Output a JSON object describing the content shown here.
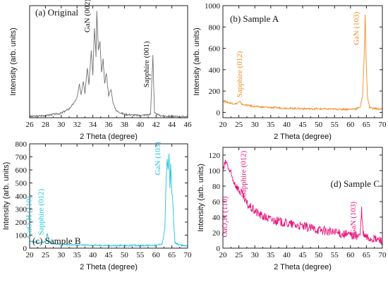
{
  "chart_data": [
    {
      "type": "line",
      "panel_label": "(a) Original",
      "xlabel": "2 Theta (degree)",
      "ylabel": "Intensity (arb. units)",
      "xlim": [
        26,
        46
      ],
      "xticks": [
        26,
        28,
        30,
        32,
        34,
        36,
        38,
        40,
        42,
        44,
        46
      ],
      "ylim": [
        0,
        1
      ],
      "yticks": [],
      "color": "#707070",
      "y_values_shown": false,
      "annotations": [
        {
          "text": "GaN (002)",
          "x": 33.6,
          "y": 0.76,
          "rotate": true
        },
        {
          "text": "Sapphire (001)",
          "x": 41.1,
          "y": 0.27,
          "rotate": true
        }
      ],
      "series": [
        {
          "points": [
            [
              26,
              0.01
            ],
            [
              28,
              0.02
            ],
            [
              30,
              0.04
            ],
            [
              31,
              0.08
            ],
            [
              31.6,
              0.13
            ],
            [
              32,
              0.18
            ],
            [
              32.3,
              0.3
            ],
            [
              32.5,
              0.2
            ],
            [
              32.8,
              0.33
            ],
            [
              33.0,
              0.22
            ],
            [
              33.3,
              0.45
            ],
            [
              33.5,
              0.3
            ],
            [
              33.8,
              0.6
            ],
            [
              34.0,
              0.38
            ],
            [
              34.2,
              0.8
            ],
            [
              34.4,
              0.55
            ],
            [
              34.5,
              0.95
            ],
            [
              34.7,
              0.6
            ],
            [
              34.9,
              0.68
            ],
            [
              35.1,
              0.4
            ],
            [
              35.3,
              0.52
            ],
            [
              35.5,
              0.3
            ],
            [
              35.7,
              0.4
            ],
            [
              36.0,
              0.2
            ],
            [
              36.3,
              0.25
            ],
            [
              36.6,
              0.12
            ],
            [
              37,
              0.06
            ],
            [
              38,
              0.03
            ],
            [
              40,
              0.02
            ],
            [
              41.3,
              0.03
            ],
            [
              41.6,
              0.56
            ],
            [
              41.8,
              0.04
            ],
            [
              42.5,
              0.02
            ],
            [
              44,
              0.01
            ],
            [
              46,
              0.01
            ]
          ]
        }
      ]
    },
    {
      "type": "line",
      "panel_label": "(b) Sample A",
      "xlabel": "2 Theta (degree)",
      "ylabel": "Intensity (arb. units)",
      "xlim": [
        20,
        70
      ],
      "xticks": [
        20,
        25,
        30,
        35,
        40,
        45,
        50,
        55,
        60,
        65,
        70
      ],
      "ylim": [
        -50,
        1000
      ],
      "yticks": [
        0,
        200,
        400,
        600,
        800,
        1000
      ],
      "color": "#f28a1e",
      "annotations": [
        {
          "text": "Sapphire (012)",
          "x": 26.0,
          "y": 140,
          "rotate": true
        },
        {
          "text": "GaN (103)",
          "x": 62.6,
          "y": 630,
          "rotate": true
        }
      ],
      "series": [
        {
          "points": [
            [
              20,
              110
            ],
            [
              21,
              100
            ],
            [
              22,
              90
            ],
            [
              23,
              85
            ],
            [
              24,
              80
            ],
            [
              25.4,
              100
            ],
            [
              26,
              75
            ],
            [
              28,
              65
            ],
            [
              30,
              55
            ],
            [
              35,
              45
            ],
            [
              40,
              40
            ],
            [
              45,
              35
            ],
            [
              50,
              33
            ],
            [
              55,
              30
            ],
            [
              60,
              30
            ],
            [
              62,
              35
            ],
            [
              63,
              50
            ],
            [
              63.8,
              150
            ],
            [
              64.3,
              520
            ],
            [
              64.6,
              920
            ],
            [
              64.9,
              500
            ],
            [
              65.3,
              150
            ],
            [
              66,
              45
            ],
            [
              68,
              35
            ],
            [
              70,
              30
            ]
          ]
        }
      ]
    },
    {
      "type": "line",
      "panel_label": "(c) Sample B",
      "xlabel": "2 Theta (degree)",
      "ylabel": "Intensity (arb. units)",
      "xlim": [
        20,
        70
      ],
      "xticks": [
        20,
        25,
        30,
        35,
        40,
        45,
        50,
        55,
        60,
        65,
        70
      ],
      "ylim": [
        0,
        800
      ],
      "yticks": [
        0,
        100,
        200,
        300,
        400,
        500,
        600,
        700,
        800
      ],
      "color": "#1ec2dd",
      "annotations": [
        {
          "text": "GaO₂H (110)",
          "x": 20.6,
          "y": 80,
          "rotate": true
        },
        {
          "text": "Sapphire (012)",
          "x": 24.4,
          "y": 100,
          "rotate": true
        },
        {
          "text": "GaN (103)",
          "x": 61.3,
          "y": 560,
          "rotate": true
        }
      ],
      "series": [
        {
          "points": [
            [
              20,
              50
            ],
            [
              22,
              45
            ],
            [
              24,
              40
            ],
            [
              25.2,
              55
            ],
            [
              25.6,
              120
            ],
            [
              26,
              60
            ],
            [
              27,
              35
            ],
            [
              30,
              30
            ],
            [
              35,
              25
            ],
            [
              40,
              22
            ],
            [
              45,
              20
            ],
            [
              50,
              20
            ],
            [
              55,
              20
            ],
            [
              60,
              22
            ],
            [
              62,
              35
            ],
            [
              62.8,
              150
            ],
            [
              63.2,
              520
            ],
            [
              63.5,
              680
            ],
            [
              63.8,
              600
            ],
            [
              64.1,
              720
            ],
            [
              64.4,
              460
            ],
            [
              64.6,
              650
            ],
            [
              65.0,
              420
            ],
            [
              65.3,
              360
            ],
            [
              65.7,
              150
            ],
            [
              66,
              40
            ],
            [
              68,
              20
            ],
            [
              70,
              20
            ]
          ]
        }
      ]
    },
    {
      "type": "line",
      "panel_label": "(d) Sample C",
      "xlabel": "2 Theta (degree)",
      "ylabel": "Intensity (arb. units)",
      "xlim": [
        20,
        70
      ],
      "xticks": [
        20,
        25,
        30,
        35,
        40,
        45,
        50,
        55,
        60,
        65,
        70
      ],
      "ylim": [
        0,
        130
      ],
      "yticks": [
        0,
        20,
        40,
        60,
        80,
        100,
        120
      ],
      "color": "#e8147a",
      "annotations": [
        {
          "text": "CaO₂H (110)",
          "x": 21.3,
          "y": 14,
          "rotate": true
        },
        {
          "text": "Sapphire (012)",
          "x": 27.2,
          "y": 66,
          "rotate": true
        },
        {
          "text": "GaN (103)",
          "x": 61.6,
          "y": 17,
          "rotate": true
        }
      ],
      "series": [
        {
          "points": [
            [
              20,
              100
            ],
            [
              21,
              112
            ],
            [
              22,
              100
            ],
            [
              23,
              90
            ],
            [
              24,
              82
            ],
            [
              25,
              75
            ],
            [
              26,
              70
            ],
            [
              27,
              60
            ],
            [
              28,
              55
            ],
            [
              30,
              48
            ],
            [
              32,
              42
            ],
            [
              35,
              37
            ],
            [
              40,
              32
            ],
            [
              45,
              28
            ],
            [
              50,
              24
            ],
            [
              55,
              20
            ],
            [
              60,
              17
            ],
            [
              62,
              16
            ],
            [
              63,
              16
            ],
            [
              63.5,
              48
            ],
            [
              64,
              18
            ],
            [
              65,
              14
            ],
            [
              67,
              12
            ],
            [
              70,
              10
            ]
          ]
        }
      ]
    }
  ]
}
